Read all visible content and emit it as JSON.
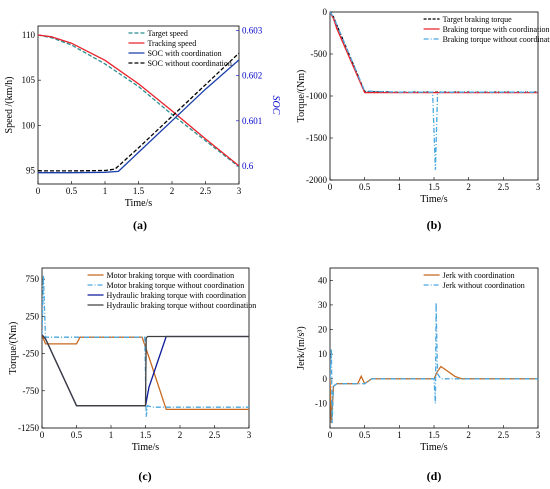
{
  "chart_data": [
    {
      "panel": "(a)",
      "type": "line",
      "xlabel": "Time/s",
      "ylabel": "Speed /(km/h)",
      "ylabel_right": "SOC",
      "xlim": [
        0,
        3
      ],
      "ylim": [
        93.5,
        111
      ],
      "ylim_right": [
        0.5996,
        0.6031
      ],
      "xticks": [
        "0",
        "0.5",
        "1",
        "1.5",
        "2",
        "2.5",
        "3"
      ],
      "yticks": [
        "95",
        "100",
        "105",
        "110"
      ],
      "yticks_right": [
        "0.6",
        "0.601",
        "0.602",
        "0.603"
      ],
      "legend_position": "top-right",
      "series": [
        {
          "name": "Target speed",
          "axis": "left",
          "color": "#2a8f8f",
          "dash": "4,2",
          "x": [
            0,
            0.2,
            0.5,
            1.0,
            1.5,
            2.0,
            2.5,
            3.0
          ],
          "y": [
            110.0,
            109.7,
            108.9,
            106.8,
            104.3,
            101.2,
            98.3,
            95.4
          ]
        },
        {
          "name": "Tracking speed",
          "axis": "left",
          "color": "#e8202a",
          "dash": "",
          "x": [
            0,
            0.2,
            0.5,
            1.0,
            1.5,
            2.0,
            2.5,
            3.0
          ],
          "y": [
            110.0,
            109.8,
            109.1,
            107.2,
            104.6,
            101.6,
            98.5,
            95.5
          ]
        },
        {
          "name": "SOC with coordination",
          "axis": "right",
          "color": "#1a3faa",
          "dash": "",
          "x": [
            0,
            0.2,
            0.5,
            1.0,
            1.2,
            1.5,
            2.0,
            2.5,
            3.0
          ],
          "y": [
            0.59985,
            0.59985,
            0.59985,
            0.59986,
            0.59988,
            0.6003,
            0.601,
            0.6017,
            0.60235
          ]
        },
        {
          "name": "SOC without coordination",
          "axis": "right",
          "color": "#000000",
          "dash": "4,2",
          "x": [
            0,
            0.2,
            0.5,
            1.0,
            1.15,
            1.5,
            2.0,
            2.5,
            3.0
          ],
          "y": [
            0.59989,
            0.59989,
            0.59989,
            0.5999,
            0.59993,
            0.6004,
            0.6011,
            0.6018,
            0.6025
          ]
        }
      ]
    },
    {
      "panel": "(b)",
      "type": "line",
      "xlabel": "Time/s",
      "ylabel": "Torque/(Nm)",
      "xlim": [
        0,
        3
      ],
      "ylim": [
        -2000,
        0
      ],
      "xticks": [
        "0",
        "0.5",
        "1",
        "1.5",
        "2",
        "2.5",
        "3"
      ],
      "yticks": [
        "0",
        "-500",
        "-1000",
        "-1500",
        "-2000"
      ],
      "legend_position": "top-right",
      "series": [
        {
          "name": "Target braking torque",
          "color": "#000000",
          "dash": "3,1.5",
          "x": [
            0,
            0.05,
            0.5,
            1.0,
            1.5,
            2.0,
            2.5,
            3.0
          ],
          "y": [
            0,
            -60,
            -950,
            -955,
            -955,
            -955,
            -955,
            -955
          ]
        },
        {
          "name": "Braking torque with coordination",
          "color": "#e8202a",
          "dash": "",
          "x": [
            0,
            0.05,
            0.1,
            0.5,
            0.55,
            1.0,
            1.5,
            2.0,
            3.0
          ],
          "y": [
            0,
            -80,
            -200,
            -960,
            -960,
            -960,
            -960,
            -960,
            -960
          ]
        },
        {
          "name": "Braking torque without coordination",
          "color": "#4aa8e0",
          "dash": "5,2,1,2",
          "x": [
            0,
            0.05,
            0.5,
            1.0,
            1.48,
            1.52,
            1.55,
            1.6,
            2.0,
            3.0
          ],
          "y": [
            0,
            -60,
            -940,
            -955,
            -955,
            -1880,
            -980,
            -955,
            -955,
            -955
          ]
        }
      ]
    },
    {
      "panel": "(c)",
      "type": "line",
      "xlabel": "Time/s",
      "ylabel": "Torque/(Nm)",
      "xlim": [
        0,
        3
      ],
      "ylim": [
        -1250,
        900
      ],
      "xticks": [
        "0",
        "0.5",
        "1",
        "1.5",
        "2",
        "2.5",
        "3"
      ],
      "yticks": [
        "750",
        "250",
        "-250",
        "-750",
        "-1250"
      ],
      "legend_position": "top-right",
      "series": [
        {
          "name": "Motor braking torque with coordination",
          "color": "#c8691e",
          "dash": "",
          "x": [
            0,
            0.05,
            0.5,
            0.55,
            1.0,
            1.45,
            1.55,
            1.8,
            2.0,
            3.0
          ],
          "y": [
            0,
            -120,
            -120,
            -30,
            -30,
            -30,
            -300,
            -1000,
            -1000,
            -1000
          ]
        },
        {
          "name": "Motor braking torque without coordination",
          "color": "#4aa8e0",
          "dash": "5,2,1,2",
          "x": [
            0,
            0.02,
            0.05,
            0.5,
            1.0,
            1.49,
            1.51,
            1.53,
            1.6,
            2.0,
            3.0
          ],
          "y": [
            0,
            800,
            -30,
            -30,
            -30,
            -30,
            -1100,
            -950,
            -970,
            -970,
            -970
          ]
        },
        {
          "name": "Hydraulic braking torque with coordination",
          "color": "#0a1a9a",
          "dash": "",
          "x": [
            0,
            0.05,
            0.5,
            0.55,
            1.0,
            1.5,
            1.55,
            1.8,
            2.0,
            3.0
          ],
          "y": [
            0,
            -50,
            -950,
            -950,
            -950,
            -950,
            -700,
            -20,
            -20,
            -20
          ]
        },
        {
          "name": "Hydraulic braking torque without coordination",
          "color": "#404040",
          "dash": "",
          "x": [
            0,
            0.05,
            0.5,
            0.55,
            1.0,
            1.5,
            1.51,
            1.53,
            2.0,
            3.0
          ],
          "y": [
            0,
            -50,
            -950,
            -950,
            -950,
            -950,
            -40,
            -20,
            -20,
            -20
          ]
        }
      ]
    },
    {
      "panel": "(d)",
      "type": "line",
      "xlabel": "Time/s",
      "ylabel": "Jerk/(m/s³)",
      "xlim": [
        0,
        3
      ],
      "ylim": [
        -20,
        45
      ],
      "xticks": [
        "0",
        "0.5",
        "1",
        "1.5",
        "2",
        "2.5",
        "3"
      ],
      "yticks": [
        "40",
        "30",
        "20",
        "10",
        "0",
        "-10"
      ],
      "legend_position": "top-right",
      "series": [
        {
          "name": "Jerk with coordination",
          "color": "#c8691e",
          "dash": "",
          "x": [
            0,
            0.02,
            0.05,
            0.1,
            0.4,
            0.45,
            0.5,
            0.6,
            1.0,
            1.5,
            1.55,
            1.6,
            1.7,
            1.8,
            1.9,
            2.0,
            3.0
          ],
          "y": [
            0,
            -18,
            -3,
            -2,
            -2,
            1,
            -2,
            0,
            0,
            0,
            3,
            5,
            3,
            1,
            0,
            0,
            0
          ]
        },
        {
          "name": "Jerk without coordination",
          "color": "#4aa8e0",
          "dash": "5,2,1,2",
          "x": [
            0,
            0.02,
            0.03,
            0.05,
            0.1,
            0.4,
            0.5,
            0.6,
            1.0,
            1.5,
            1.52,
            1.53,
            1.55,
            1.6,
            2.0,
            3.0
          ],
          "y": [
            0,
            12,
            -18,
            -3,
            -2,
            -2,
            -2,
            0,
            0,
            0,
            -10,
            31,
            2,
            0,
            0,
            0
          ]
        }
      ]
    }
  ]
}
